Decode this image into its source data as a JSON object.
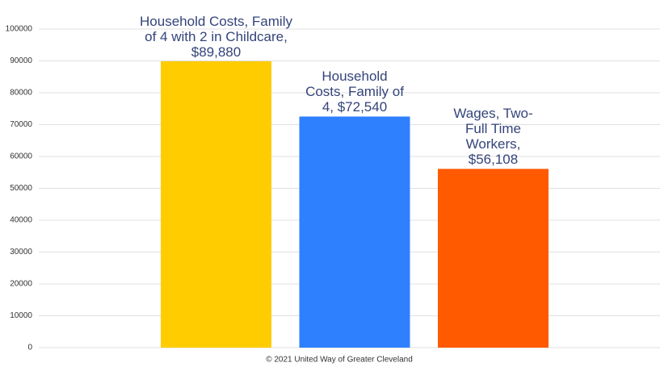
{
  "chart_data": {
    "type": "bar",
    "categories": [
      null,
      null,
      null
    ],
    "values": [
      89880,
      72540,
      56108
    ],
    "value_labels": [
      "Household Costs, Family of 4 with 2 in Childcare, $89,880",
      "Household Costs, Family of 4, $72,540",
      "Wages, Two-Full Time Workers, $56,108"
    ],
    "colors": [
      "#ffcc00",
      "#2f80ff",
      "#ff5a00"
    ],
    "ylim": [
      0,
      100000
    ],
    "yticks": [
      0,
      10000,
      20000,
      30000,
      40000,
      50000,
      60000,
      70000,
      80000,
      90000,
      100000
    ],
    "grid": true,
    "source": "© 2021 United Way of Greater Cleveland"
  }
}
